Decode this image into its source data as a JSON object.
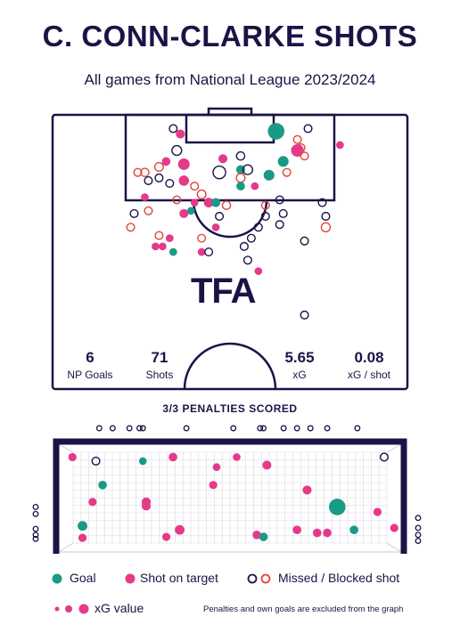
{
  "header": {
    "title": "C. CONN-CLARKE SHOTS",
    "subtitle": "All games from National League 2023/2024"
  },
  "logo": {
    "text": "TFA"
  },
  "stats": [
    {
      "value": "6",
      "label": "NP Goals"
    },
    {
      "value": "71",
      "label": "Shots"
    },
    {
      "value": "5.65",
      "label": "xG"
    },
    {
      "value": "0.08",
      "label": "xG / shot"
    }
  ],
  "penalties_text": "3/3 PENALTIES SCORED",
  "legend": {
    "goal_label": "Goal",
    "on_target_label": "Shot on target",
    "missed_label": "Missed / Blocked shot",
    "xg_label": "xG value",
    "footnote": "Penalties and own goals are excluded from the graph"
  },
  "colors": {
    "goal": "#1a9a85",
    "on_target": "#e5398a",
    "missed": "#1a1446",
    "blocked": "#e0463a",
    "line": "#1a1446"
  },
  "chart_data": [
    {
      "type": "scatter",
      "title": "Shot map",
      "note": "x = horizontal pitch position 0-100 (left to right), y = distance from goal line 0-100 of half-pitch depth; outcome: goal / on_target / missed / blocked; xg drives marker size",
      "points": [
        {
          "x": 63,
          "y": 6,
          "outcome": "goal",
          "xg": 0.45
        },
        {
          "x": 36,
          "y": 7,
          "outcome": "on_target",
          "xg": 0.06
        },
        {
          "x": 34,
          "y": 5,
          "outcome": "missed",
          "xg": 0.03
        },
        {
          "x": 69,
          "y": 9,
          "outcome": "blocked",
          "xg": 0.03
        },
        {
          "x": 72,
          "y": 5,
          "outcome": "missed",
          "xg": 0.03
        },
        {
          "x": 70,
          "y": 12,
          "outcome": "blocked",
          "xg": 0.03
        },
        {
          "x": 81,
          "y": 11,
          "outcome": "on_target",
          "xg": 0.03
        },
        {
          "x": 35,
          "y": 13,
          "outcome": "missed",
          "xg": 0.08
        },
        {
          "x": 48,
          "y": 16,
          "outcome": "on_target",
          "xg": 0.06
        },
        {
          "x": 53,
          "y": 15,
          "outcome": "missed",
          "xg": 0.04
        },
        {
          "x": 65,
          "y": 17,
          "outcome": "goal",
          "xg": 0.12
        },
        {
          "x": 69,
          "y": 13,
          "outcome": "on_target",
          "xg": 0.2
        },
        {
          "x": 71,
          "y": 15,
          "outcome": "blocked",
          "xg": 0.03
        },
        {
          "x": 32,
          "y": 17,
          "outcome": "on_target",
          "xg": 0.05
        },
        {
          "x": 30,
          "y": 19,
          "outcome": "blocked",
          "xg": 0.05
        },
        {
          "x": 37,
          "y": 18,
          "outcome": "on_target",
          "xg": 0.15
        },
        {
          "x": 26,
          "y": 21,
          "outcome": "blocked",
          "xg": 0.04
        },
        {
          "x": 24,
          "y": 21,
          "outcome": "blocked",
          "xg": 0.03
        },
        {
          "x": 30,
          "y": 23,
          "outcome": "missed",
          "xg": 0.03
        },
        {
          "x": 47,
          "y": 21,
          "outcome": "missed",
          "xg": 0.2
        },
        {
          "x": 53,
          "y": 20,
          "outcome": "goal",
          "xg": 0.06
        },
        {
          "x": 55,
          "y": 20,
          "outcome": "missed",
          "xg": 0.08
        },
        {
          "x": 53,
          "y": 23,
          "outcome": "blocked",
          "xg": 0.05
        },
        {
          "x": 61,
          "y": 22,
          "outcome": "goal",
          "xg": 0.12
        },
        {
          "x": 66,
          "y": 21,
          "outcome": "blocked",
          "xg": 0.03
        },
        {
          "x": 27,
          "y": 24,
          "outcome": "missed",
          "xg": 0.03
        },
        {
          "x": 33,
          "y": 25,
          "outcome": "missed",
          "xg": 0.03
        },
        {
          "x": 37,
          "y": 24,
          "outcome": "on_target",
          "xg": 0.1
        },
        {
          "x": 40,
          "y": 26,
          "outcome": "blocked",
          "xg": 0.03
        },
        {
          "x": 42,
          "y": 29,
          "outcome": "blocked",
          "xg": 0.05
        },
        {
          "x": 53,
          "y": 26,
          "outcome": "goal",
          "xg": 0.05
        },
        {
          "x": 57,
          "y": 26,
          "outcome": "on_target",
          "xg": 0.03
        },
        {
          "x": 26,
          "y": 30,
          "outcome": "on_target",
          "xg": 0.03
        },
        {
          "x": 35,
          "y": 31,
          "outcome": "blocked",
          "xg": 0.03
        },
        {
          "x": 40,
          "y": 32,
          "outcome": "on_target",
          "xg": 0.03
        },
        {
          "x": 44,
          "y": 32,
          "outcome": "on_target",
          "xg": 0.08
        },
        {
          "x": 46,
          "y": 32,
          "outcome": "goal",
          "xg": 0.06
        },
        {
          "x": 49,
          "y": 33,
          "outcome": "blocked",
          "xg": 0.04
        },
        {
          "x": 60,
          "y": 33,
          "outcome": "blocked",
          "xg": 0.03
        },
        {
          "x": 64,
          "y": 31,
          "outcome": "missed",
          "xg": 0.03
        },
        {
          "x": 76,
          "y": 32,
          "outcome": "missed",
          "xg": 0.03
        },
        {
          "x": 23,
          "y": 36,
          "outcome": "missed",
          "xg": 0.03
        },
        {
          "x": 27,
          "y": 35,
          "outcome": "blocked",
          "xg": 0.03
        },
        {
          "x": 37,
          "y": 36,
          "outcome": "on_target",
          "xg": 0.06
        },
        {
          "x": 39,
          "y": 35,
          "outcome": "goal",
          "xg": 0.03
        },
        {
          "x": 47,
          "y": 37,
          "outcome": "missed",
          "xg": 0.03
        },
        {
          "x": 60,
          "y": 37,
          "outcome": "missed",
          "xg": 0.03
        },
        {
          "x": 65,
          "y": 36,
          "outcome": "missed",
          "xg": 0.03
        },
        {
          "x": 77,
          "y": 37,
          "outcome": "missed",
          "xg": 0.03
        },
        {
          "x": 22,
          "y": 41,
          "outcome": "blocked",
          "xg": 0.03
        },
        {
          "x": 46,
          "y": 41,
          "outcome": "on_target",
          "xg": 0.03
        },
        {
          "x": 58,
          "y": 41,
          "outcome": "missed",
          "xg": 0.03
        },
        {
          "x": 64,
          "y": 40,
          "outcome": "missed",
          "xg": 0.03
        },
        {
          "x": 77,
          "y": 41,
          "outcome": "blocked",
          "xg": 0.06
        },
        {
          "x": 30,
          "y": 44,
          "outcome": "blocked",
          "xg": 0.03
        },
        {
          "x": 33,
          "y": 45,
          "outcome": "on_target",
          "xg": 0.03
        },
        {
          "x": 42,
          "y": 45,
          "outcome": "blocked",
          "xg": 0.03
        },
        {
          "x": 56,
          "y": 45,
          "outcome": "missed",
          "xg": 0.03
        },
        {
          "x": 71,
          "y": 46,
          "outcome": "missed",
          "xg": 0.03
        },
        {
          "x": 29,
          "y": 48,
          "outcome": "on_target",
          "xg": 0.03
        },
        {
          "x": 31,
          "y": 48,
          "outcome": "on_target",
          "xg": 0.03
        },
        {
          "x": 34,
          "y": 50,
          "outcome": "goal",
          "xg": 0.03
        },
        {
          "x": 42,
          "y": 50,
          "outcome": "on_target",
          "xg": 0.03
        },
        {
          "x": 44,
          "y": 50,
          "outcome": "missed",
          "xg": 0.03
        },
        {
          "x": 54,
          "y": 48,
          "outcome": "missed",
          "xg": 0.03
        },
        {
          "x": 55,
          "y": 53,
          "outcome": "missed",
          "xg": 0.03
        },
        {
          "x": 58,
          "y": 57,
          "outcome": "on_target",
          "xg": 0.03
        },
        {
          "x": 71,
          "y": 73,
          "outcome": "missed",
          "xg": 0.03
        }
      ]
    },
    {
      "type": "scatter",
      "title": "Goal mouth",
      "note": "x = position across goal 0-100, y = height 0-100 inside goal frame (negative/out of range = off target)",
      "points": [
        {
          "x": 3,
          "y": 88,
          "outcome": "on_target",
          "xg": 0.04
        },
        {
          "x": 10,
          "y": 84,
          "outcome": "missed",
          "xg": 0.03
        },
        {
          "x": 24,
          "y": 84,
          "outcome": "goal",
          "xg": 0.03
        },
        {
          "x": 33,
          "y": 88,
          "outcome": "on_target",
          "xg": 0.05
        },
        {
          "x": 46,
          "y": 78,
          "outcome": "on_target",
          "xg": 0.03
        },
        {
          "x": 52,
          "y": 88,
          "outcome": "on_target",
          "xg": 0.03
        },
        {
          "x": 61,
          "y": 80,
          "outcome": "on_target",
          "xg": 0.06
        },
        {
          "x": 96,
          "y": 88,
          "outcome": "missed",
          "xg": 0.03
        },
        {
          "x": 12,
          "y": 60,
          "outcome": "goal",
          "xg": 0.05
        },
        {
          "x": 45,
          "y": 60,
          "outcome": "on_target",
          "xg": 0.04
        },
        {
          "x": 73,
          "y": 55,
          "outcome": "on_target",
          "xg": 0.06
        },
        {
          "x": 9,
          "y": 43,
          "outcome": "on_target",
          "xg": 0.04
        },
        {
          "x": 25,
          "y": 43,
          "outcome": "on_target",
          "xg": 0.06
        },
        {
          "x": 25,
          "y": 39,
          "outcome": "on_target",
          "xg": 0.06
        },
        {
          "x": 82,
          "y": 38,
          "outcome": "goal",
          "xg": 0.45
        },
        {
          "x": 94,
          "y": 33,
          "outcome": "on_target",
          "xg": 0.04
        },
        {
          "x": 6,
          "y": 19,
          "outcome": "goal",
          "xg": 0.08
        },
        {
          "x": 35,
          "y": 15,
          "outcome": "on_target",
          "xg": 0.08
        },
        {
          "x": 58,
          "y": 10,
          "outcome": "on_target",
          "xg": 0.05
        },
        {
          "x": 60,
          "y": 8,
          "outcome": "goal",
          "xg": 0.05
        },
        {
          "x": 70,
          "y": 15,
          "outcome": "on_target",
          "xg": 0.05
        },
        {
          "x": 76,
          "y": 12,
          "outcome": "on_target",
          "xg": 0.05
        },
        {
          "x": 79,
          "y": 12,
          "outcome": "on_target",
          "xg": 0.05
        },
        {
          "x": 87,
          "y": 15,
          "outcome": "goal",
          "xg": 0.05
        },
        {
          "x": 99,
          "y": 17,
          "outcome": "on_target",
          "xg": 0.04
        },
        {
          "x": 6,
          "y": 7,
          "outcome": "on_target",
          "xg": 0.04
        },
        {
          "x": 31,
          "y": 8,
          "outcome": "on_target",
          "xg": 0.04
        }
      ],
      "off_target": [
        {
          "side": "top",
          "x": 11
        },
        {
          "side": "top",
          "x": 15
        },
        {
          "side": "top",
          "x": 20
        },
        {
          "side": "top",
          "x": 23
        },
        {
          "side": "top",
          "x": 24
        },
        {
          "side": "top",
          "x": 37
        },
        {
          "side": "top",
          "x": 51
        },
        {
          "side": "top",
          "x": 59
        },
        {
          "side": "top",
          "x": 60
        },
        {
          "side": "top",
          "x": 66
        },
        {
          "side": "top",
          "x": 70
        },
        {
          "side": "top",
          "x": 74
        },
        {
          "side": "top",
          "x": 79
        },
        {
          "side": "top",
          "x": 88
        },
        {
          "side": "left",
          "y": 38
        },
        {
          "side": "left",
          "y": 31
        },
        {
          "side": "left",
          "y": 16
        },
        {
          "side": "left",
          "y": 10
        },
        {
          "side": "left",
          "y": 6
        },
        {
          "side": "right",
          "y": 27
        },
        {
          "side": "right",
          "y": 17
        },
        {
          "side": "right",
          "y": 10
        },
        {
          "side": "right",
          "y": 4
        }
      ]
    }
  ]
}
